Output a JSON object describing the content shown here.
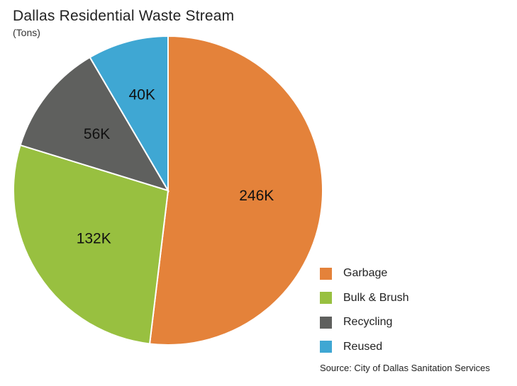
{
  "chart_data": {
    "type": "pie",
    "title": "Dallas Residential Waste Stream",
    "subtitle": "(Tons)",
    "categories": [
      "Garbage",
      "Bulk & Brush",
      "Recycling",
      "Reused"
    ],
    "values": [
      246,
      132,
      56,
      40
    ],
    "labels": [
      "246K",
      "132K",
      "56K",
      "40K"
    ],
    "colors": [
      "#e4823a",
      "#98c040",
      "#5f605e",
      "#3fa7d3"
    ],
    "legend_position": "bottom-right",
    "source": "Source: City of Dallas Sanitation Services"
  }
}
